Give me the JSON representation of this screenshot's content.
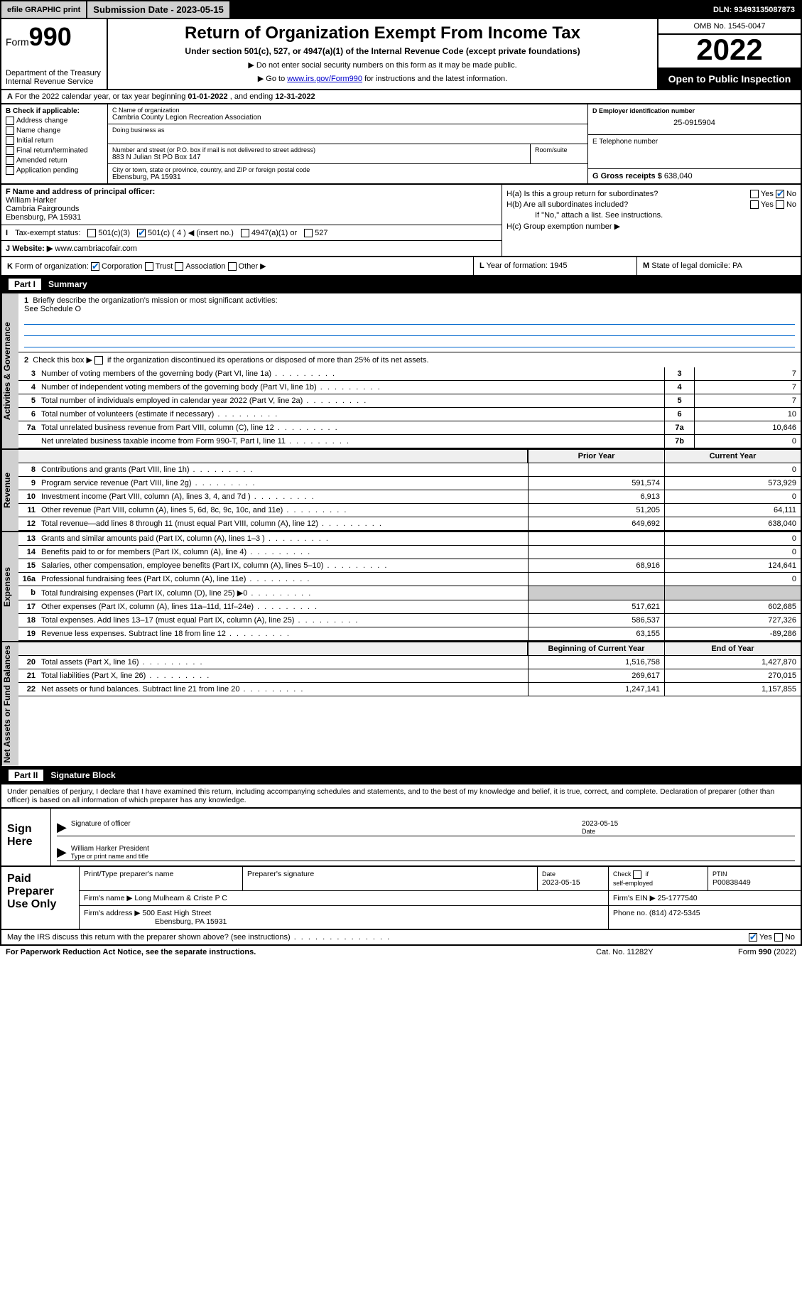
{
  "topbar": {
    "efile": "efile GRAPHIC print",
    "submission": "Submission Date - 2023-05-15",
    "dln": "DLN: 93493135087873"
  },
  "header": {
    "form_prefix": "Form",
    "form_num": "990",
    "title": "Return of Organization Exempt From Income Tax",
    "subtitle": "Under section 501(c), 527, or 4947(a)(1) of the Internal Revenue Code (except private foundations)",
    "note1": "▶ Do not enter social security numbers on this form as it may be made public.",
    "note2_pre": "▶ Go to ",
    "note2_link": "www.irs.gov/Form990",
    "note2_post": " for instructions and the latest information.",
    "dept": "Department of the Treasury",
    "irs": "Internal Revenue Service",
    "omb": "OMB No. 1545-0047",
    "year": "2022",
    "open": "Open to Public Inspection"
  },
  "rowA": {
    "a_label": "A",
    "text_pre": "For the 2022 calendar year, or tax year beginning ",
    "begin": "01-01-2022",
    "mid": " , and ending ",
    "end": "12-31-2022"
  },
  "colB": {
    "hdr": "B Check if applicable:",
    "opts": [
      "Address change",
      "Name change",
      "Initial return",
      "Final return/terminated",
      "Amended return",
      "Application pending"
    ]
  },
  "colC": {
    "name_label": "C Name of organization",
    "name": "Cambria County Legion Recreation Association",
    "dba_label": "Doing business as",
    "addr_label": "Number and street (or P.O. box if mail is not delivered to street address)",
    "addr": "883 N Julian St PO Box 147",
    "room_label": "Room/suite",
    "city_label": "City or town, state or province, country, and ZIP or foreign postal code",
    "city": "Ebensburg, PA  15931"
  },
  "colD": {
    "label": "D Employer identification number",
    "ein": "25-0915904"
  },
  "colE": {
    "label": "E Telephone number"
  },
  "colG": {
    "label": "G Gross receipts $",
    "val": "638,040"
  },
  "colF": {
    "label": "F Name and address of principal officer:",
    "name": "William Harker",
    "l2": "Cambria Fairgrounds",
    "l3": "Ebensburg, PA  15931"
  },
  "colH": {
    "ha": "H(a)  Is this a group return for subordinates?",
    "ha_yes": "Yes",
    "ha_no": "No",
    "hb": "H(b)  Are all subordinates included?",
    "hb_yes": "Yes",
    "hb_no": "No",
    "hb_note": "If \"No,\" attach a list. See instructions.",
    "hc": "H(c)  Group exemption number ▶"
  },
  "rowI": {
    "label": "I",
    "text": "Tax-exempt status:",
    "o1": "501(c)(3)",
    "o2": "501(c) ( 4 ) ◀ (insert no.)",
    "o3": "4947(a)(1) or",
    "o4": "527"
  },
  "rowJ": {
    "label": "J",
    "text": "Website: ▶",
    "val": "www.cambriacofair.com"
  },
  "rowK": {
    "label": "K",
    "text": "Form of organization:",
    "corp": "Corporation",
    "trust": "Trust",
    "assoc": "Association",
    "other": "Other ▶"
  },
  "rowL": {
    "label": "L",
    "text": "Year of formation: 1945"
  },
  "rowM": {
    "label": "M",
    "text": "State of legal domicile: PA"
  },
  "part1": {
    "hdr_label": "Part I",
    "hdr_title": "Summary",
    "q1": "Briefly describe the organization's mission or most significant activities:",
    "q1_ans": "See Schedule O",
    "q2": "Check this box ▶       if the organization discontinued its operations or disposed of more than 25% of its net assets.",
    "side_act": "Activities & Governance",
    "side_rev": "Revenue",
    "side_exp": "Expenses",
    "side_net": "Net Assets or Fund Balances",
    "prior": "Prior Year",
    "current": "Current Year",
    "begin": "Beginning of Current Year",
    "endyr": "End of Year",
    "rows_gov": [
      {
        "n": "3",
        "d": "Number of voting members of the governing body (Part VI, line 1a)",
        "b": "3",
        "v": "7"
      },
      {
        "n": "4",
        "d": "Number of independent voting members of the governing body (Part VI, line 1b)",
        "b": "4",
        "v": "7"
      },
      {
        "n": "5",
        "d": "Total number of individuals employed in calendar year 2022 (Part V, line 2a)",
        "b": "5",
        "v": "7"
      },
      {
        "n": "6",
        "d": "Total number of volunteers (estimate if necessary)",
        "b": "6",
        "v": "10"
      },
      {
        "n": "7a",
        "d": "Total unrelated business revenue from Part VIII, column (C), line 12",
        "b": "7a",
        "v": "10,646"
      },
      {
        "n": "",
        "d": "Net unrelated business taxable income from Form 990-T, Part I, line 11",
        "b": "7b",
        "v": "0"
      }
    ],
    "rows_rev": [
      {
        "n": "8",
        "d": "Contributions and grants (Part VIII, line 1h)",
        "p": "",
        "c": "0"
      },
      {
        "n": "9",
        "d": "Program service revenue (Part VIII, line 2g)",
        "p": "591,574",
        "c": "573,929"
      },
      {
        "n": "10",
        "d": "Investment income (Part VIII, column (A), lines 3, 4, and 7d )",
        "p": "6,913",
        "c": "0"
      },
      {
        "n": "11",
        "d": "Other revenue (Part VIII, column (A), lines 5, 6d, 8c, 9c, 10c, and 11e)",
        "p": "51,205",
        "c": "64,111"
      },
      {
        "n": "12",
        "d": "Total revenue—add lines 8 through 11 (must equal Part VIII, column (A), line 12)",
        "p": "649,692",
        "c": "638,040"
      }
    ],
    "rows_exp": [
      {
        "n": "13",
        "d": "Grants and similar amounts paid (Part IX, column (A), lines 1–3 )",
        "p": "",
        "c": "0"
      },
      {
        "n": "14",
        "d": "Benefits paid to or for members (Part IX, column (A), line 4)",
        "p": "",
        "c": "0"
      },
      {
        "n": "15",
        "d": "Salaries, other compensation, employee benefits (Part IX, column (A), lines 5–10)",
        "p": "68,916",
        "c": "124,641"
      },
      {
        "n": "16a",
        "d": "Professional fundraising fees (Part IX, column (A), line 11e)",
        "p": "",
        "c": "0"
      },
      {
        "n": "b",
        "d": "Total fundraising expenses (Part IX, column (D), line 25) ▶0",
        "p": "__shade__",
        "c": "__shade__"
      },
      {
        "n": "17",
        "d": "Other expenses (Part IX, column (A), lines 11a–11d, 11f–24e)",
        "p": "517,621",
        "c": "602,685"
      },
      {
        "n": "18",
        "d": "Total expenses. Add lines 13–17 (must equal Part IX, column (A), line 25)",
        "p": "586,537",
        "c": "727,326"
      },
      {
        "n": "19",
        "d": "Revenue less expenses. Subtract line 18 from line 12",
        "p": "63,155",
        "c": "-89,286"
      }
    ],
    "rows_net": [
      {
        "n": "20",
        "d": "Total assets (Part X, line 16)",
        "p": "1,516,758",
        "c": "1,427,870"
      },
      {
        "n": "21",
        "d": "Total liabilities (Part X, line 26)",
        "p": "269,617",
        "c": "270,015"
      },
      {
        "n": "22",
        "d": "Net assets or fund balances. Subtract line 21 from line 20",
        "p": "1,247,141",
        "c": "1,157,855"
      }
    ]
  },
  "sig": {
    "hdr_label": "Part II",
    "hdr_title": "Signature Block",
    "intro": "Under penalties of perjury, I declare that I have examined this return, including accompanying schedules and statements, and to the best of my knowledge and belief, it is true, correct, and complete. Declaration of preparer (other than officer) is based on all information of which preparer has any knowledge.",
    "sign_here": "Sign Here",
    "sig_officer": "Signature of officer",
    "date_label": "Date",
    "date": "2023-05-15",
    "name": "William Harker  President",
    "name_label": "Type or print name and title",
    "paid_label": "Paid Preparer Use Only",
    "pp_name": "Print/Type preparer's name",
    "pp_sig": "Preparer's signature",
    "pp_date_l": "Date",
    "pp_date": "2023-05-15",
    "pp_check": "Check        if self-employed",
    "pp_ptin_l": "PTIN",
    "pp_ptin": "P00838449",
    "firm_name_l": "Firm's name    ▶",
    "firm_name": "Long Mulhearn & Criste P C",
    "firm_ein_l": "Firm's EIN ▶",
    "firm_ein": "25-1777540",
    "firm_addr_l": "Firm's address ▶",
    "firm_addr1": "500 East High Street",
    "firm_addr2": "Ebensburg, PA  15931",
    "phone_l": "Phone no.",
    "phone": "(814) 472-5345"
  },
  "footer": {
    "discuss": "May the IRS discuss this return with the preparer shown above? (see instructions)",
    "yes": "Yes",
    "no": "No",
    "pra": "For Paperwork Reduction Act Notice, see the separate instructions.",
    "cat": "Cat. No. 11282Y",
    "form": "Form 990 (2022)"
  }
}
